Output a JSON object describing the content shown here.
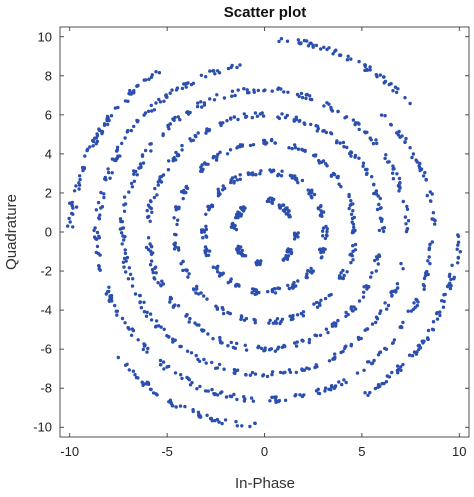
{
  "chart_data": {
    "type": "scatter",
    "title": "Scatter plot",
    "xlabel": "In-Phase",
    "ylabel": "Quadrature",
    "xlim": [
      -10.5,
      10.5
    ],
    "ylim": [
      -10.5,
      10.5
    ],
    "xticks": [
      -10,
      -5,
      0,
      5,
      10
    ],
    "yticks": [
      -10,
      -8,
      -6,
      -4,
      -2,
      0,
      2,
      4,
      6,
      8,
      10
    ],
    "grid": false,
    "marker_color": "#2b4fae",
    "series": [
      {
        "values": [
          {
            "ring_radius": 1.6,
            "points": [
              [
                1.1,
                1.1
              ],
              [
                1.25,
                0.9
              ],
              [
                0.9,
                1.3
              ],
              [
                1.3,
                -1.0
              ],
              [
                1.1,
                -1.3
              ],
              [
                -1.1,
                -1.1
              ],
              [
                -1.3,
                -0.9
              ],
              [
                -1.1,
                1.2
              ],
              [
                -1.35,
                0.85
              ],
              [
                0.3,
                1.6
              ],
              [
                -0.3,
                -1.6
              ],
              [
                1.6,
                -0.2
              ],
              [
                -1.55,
                0.3
              ]
            ]
          },
          {
            "ring_radius": 3.1,
            "points": [
              [
                3.1,
                0.0
              ],
              [
                2.9,
                1.1
              ],
              [
                2.4,
                2.0
              ],
              [
                1.6,
                2.7
              ],
              [
                0.6,
                3.05
              ],
              [
                -0.5,
                3.05
              ],
              [
                -1.5,
                2.7
              ],
              [
                -2.3,
                2.1
              ],
              [
                -2.9,
                1.1
              ],
              [
                -3.1,
                0.0
              ],
              [
                -2.95,
                -1.0
              ],
              [
                -2.4,
                -1.95
              ],
              [
                -1.6,
                -2.65
              ],
              [
                -0.6,
                -3.05
              ],
              [
                0.5,
                -3.05
              ],
              [
                1.5,
                -2.7
              ],
              [
                2.3,
                -2.1
              ],
              [
                2.9,
                -1.1
              ]
            ]
          },
          {
            "ring_radius": 4.6,
            "points": [
              [
                4.6,
                0.3
              ],
              [
                4.4,
                1.4
              ],
              [
                3.8,
                2.6
              ],
              [
                2.9,
                3.6
              ],
              [
                1.7,
                4.3
              ],
              [
                0.4,
                4.6
              ],
              [
                -1.0,
                4.5
              ],
              [
                -2.2,
                4.0
              ],
              [
                -3.3,
                3.2
              ],
              [
                -4.1,
                2.1
              ],
              [
                -4.55,
                0.8
              ],
              [
                -4.55,
                -0.6
              ],
              [
                -4.1,
                -2.0
              ],
              [
                -3.3,
                -3.2
              ],
              [
                -2.2,
                -4.0
              ],
              [
                -0.9,
                -4.5
              ],
              [
                0.5,
                -4.6
              ],
              [
                1.8,
                -4.25
              ],
              [
                3.0,
                -3.5
              ],
              [
                3.9,
                -2.4
              ],
              [
                4.5,
                -1.1
              ]
            ]
          },
          {
            "ring_radius": 6.0,
            "points": [
              [
                6.0,
                0.6
              ],
              [
                5.8,
                1.8
              ],
              [
                5.3,
                3.0
              ],
              [
                4.5,
                4.0
              ],
              [
                3.5,
                4.9
              ],
              [
                2.3,
                5.5
              ],
              [
                1.0,
                5.9
              ],
              [
                -0.4,
                6.0
              ],
              [
                -1.8,
                5.75
              ],
              [
                -3.0,
                5.2
              ],
              [
                -4.1,
                4.4
              ],
              [
                -5.0,
                3.3
              ],
              [
                -5.6,
                2.1
              ],
              [
                -5.95,
                0.8
              ],
              [
                -5.95,
                -0.6
              ],
              [
                -5.7,
                -1.9
              ],
              [
                -5.1,
                -3.1
              ],
              [
                -4.2,
                -4.2
              ],
              [
                -3.1,
                -5.1
              ],
              [
                -1.9,
                -5.7
              ],
              [
                -0.6,
                -5.95
              ],
              [
                0.8,
                -5.95
              ],
              [
                2.1,
                -5.6
              ],
              [
                3.3,
                -5.0
              ],
              [
                4.3,
                -4.2
              ],
              [
                5.1,
                -3.1
              ],
              [
                5.7,
                -1.8
              ]
            ]
          },
          {
            "ring_radius": 7.3,
            "points": [
              [
                7.3,
                0.8
              ],
              [
                7.0,
                2.2
              ],
              [
                6.4,
                3.5
              ],
              [
                5.5,
                4.8
              ],
              [
                4.4,
                5.8
              ],
              [
                3.0,
                6.6
              ],
              [
                1.6,
                7.1
              ],
              [
                0.1,
                7.3
              ],
              [
                -1.4,
                7.15
              ],
              [
                -2.9,
                6.7
              ],
              [
                -4.2,
                6.0
              ],
              [
                -5.3,
                5.0
              ],
              [
                -6.2,
                3.8
              ],
              [
                -6.9,
                2.4
              ],
              [
                -7.25,
                0.9
              ],
              [
                -7.25,
                -0.6
              ],
              [
                -7.0,
                -2.1
              ],
              [
                -6.4,
                -3.5
              ],
              [
                -5.5,
                -4.8
              ],
              [
                -4.4,
                -5.8
              ],
              [
                -3.1,
                -6.6
              ],
              [
                -1.6,
                -7.1
              ],
              [
                -0.1,
                -7.3
              ],
              [
                1.4,
                -7.15
              ],
              [
                2.9,
                -6.7
              ],
              [
                4.2,
                -6.0
              ],
              [
                5.3,
                -5.0
              ],
              [
                6.2,
                -3.8
              ],
              [
                6.9,
                -2.4
              ]
            ]
          },
          {
            "ring_radius": 8.6,
            "points": [
              [
                8.6,
                1.3
              ],
              [
                8.2,
                2.8
              ],
              [
                7.5,
                4.2
              ],
              [
                6.6,
                5.5
              ],
              [
                -1.9,
                8.4
              ],
              [
                -3.3,
                7.9
              ],
              [
                -4.6,
                7.2
              ],
              [
                -5.7,
                6.4
              ],
              [
                -6.6,
                5.5
              ],
              [
                -7.3,
                4.5
              ],
              [
                -7.9,
                3.2
              ],
              [
                -8.3,
                1.9
              ],
              [
                -8.6,
                0.4
              ],
              [
                -8.5,
                -1.1
              ],
              [
                -8.2,
                -2.6
              ],
              [
                -7.6,
                -4.0
              ],
              [
                -6.7,
                -5.3
              ],
              [
                -5.7,
                -6.4
              ],
              [
                -4.5,
                -7.3
              ],
              [
                -3.2,
                -8.0
              ],
              [
                -1.8,
                -8.4
              ],
              [
                -0.3,
                -8.6
              ],
              [
                1.2,
                -8.5
              ],
              [
                2.7,
                -8.2
              ],
              [
                4.1,
                -7.6
              ],
              [
                5.4,
                -6.7
              ],
              [
                6.5,
                -5.6
              ],
              [
                7.4,
                -4.3
              ],
              [
                8.1,
                -2.9
              ],
              [
                8.5,
                -1.4
              ]
            ]
          },
          {
            "ring_radius": 9.9,
            "points": [
              [
                1.5,
                9.8
              ],
              [
                2.8,
                9.5
              ],
              [
                3.9,
                9.1
              ],
              [
                5.0,
                8.5
              ],
              [
                6.0,
                7.9
              ],
              [
                6.8,
                7.2
              ],
              [
                -6.2,
                7.7
              ],
              [
                -6.9,
                7.0
              ],
              [
                -7.6,
                6.3
              ],
              [
                -8.2,
                5.5
              ],
              [
                -8.8,
                4.6
              ],
              [
                -9.3,
                3.4
              ],
              [
                -9.6,
                2.3
              ],
              [
                -9.9,
                1.3
              ],
              [
                -1.5,
                -9.8
              ],
              [
                -2.8,
                -9.5
              ],
              [
                -4.0,
                -9.1
              ],
              [
                -5.0,
                -8.6
              ],
              [
                -6.0,
                -7.9
              ],
              [
                -6.8,
                -7.2
              ],
              [
                6.0,
                -7.8
              ],
              [
                6.8,
                -7.1
              ],
              [
                7.5,
                -6.4
              ],
              [
                8.1,
                -5.6
              ],
              [
                8.7,
                -4.8
              ],
              [
                9.2,
                -3.6
              ],
              [
                9.6,
                -2.4
              ],
              [
                9.9,
                -1.2
              ]
            ]
          }
        ]
      }
    ]
  }
}
